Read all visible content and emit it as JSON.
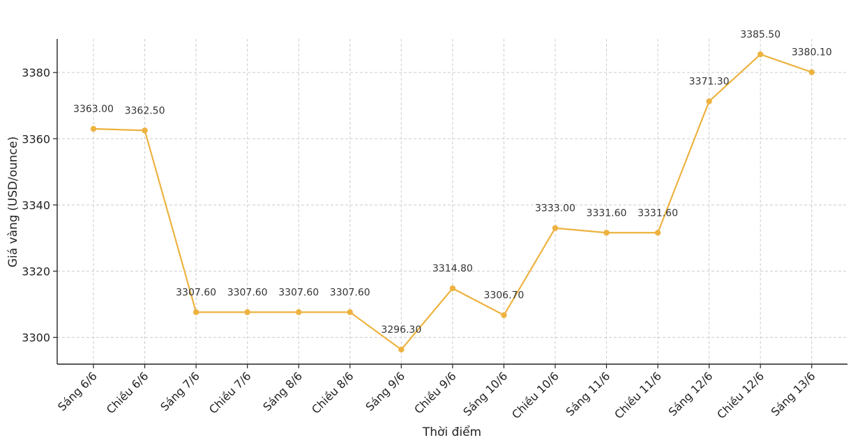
{
  "chart_data": {
    "type": "line",
    "title": "",
    "xlabel": "Thời điểm",
    "ylabel": "Giá vàng (USD/ounce)",
    "categories": [
      "Sáng 6/6",
      "Chiều 6/6",
      "Sáng 7/6",
      "Chiều 7/6",
      "Sáng 8/6",
      "Chiều 8/6",
      "Sáng 9/6",
      "Chiều 9/6",
      "Sáng 10/6",
      "Chiều 10/6",
      "Sáng 11/6",
      "Chiều 11/6",
      "Sáng 12/6",
      "Chiều 12/6",
      "Sáng 13/6"
    ],
    "series": [
      {
        "values": [
          3363.0,
          3362.5,
          3307.6,
          3307.6,
          3307.6,
          3307.6,
          3296.3,
          3314.8,
          3306.7,
          3333.0,
          3331.6,
          3331.6,
          3371.3,
          3385.5,
          3380.1
        ],
        "data_labels": [
          "3363.00",
          "3362.50",
          "3307.60",
          "3307.60",
          "3307.60",
          "3307.60",
          "3296.30",
          "3314.80",
          "3306.70",
          "3333.00",
          "3331.60",
          "3331.60",
          "3371.30",
          "3385.50",
          "3380.10"
        ],
        "color": "#EDB23F"
      }
    ],
    "ylim": [
      3292,
      3390
    ],
    "yticks": [
      3300,
      3320,
      3340,
      3360,
      3380
    ],
    "grid": true,
    "legend": "none"
  }
}
